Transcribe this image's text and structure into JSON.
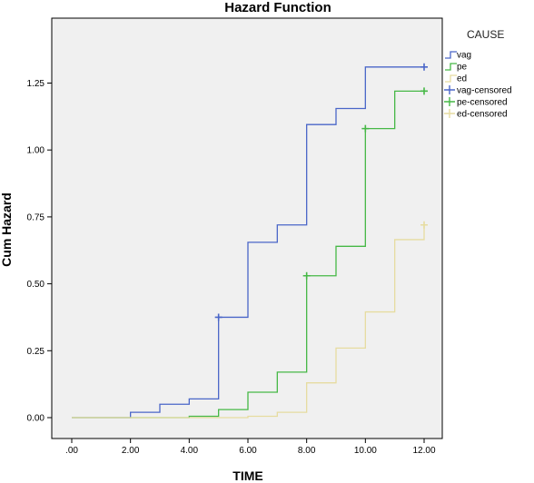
{
  "chart_data": {
    "type": "line",
    "step": true,
    "title": "Hazard Function",
    "xlabel": "TIME",
    "ylabel": "Cum Hazard",
    "xlim": [
      0,
      12
    ],
    "ylim": [
      0,
      1.4
    ],
    "x_ticks": [
      0,
      2,
      4,
      6,
      8,
      10,
      12
    ],
    "x_tick_labels": [
      ".00",
      "2.00",
      "4.00",
      "6.00",
      "8.00",
      "10.00",
      "12.00"
    ],
    "y_ticks": [
      0,
      0.25,
      0.5,
      0.75,
      1.0,
      1.25
    ],
    "y_tick_labels": [
      "0.00",
      "0.25",
      "0.50",
      "0.75",
      "1.00",
      "1.25"
    ],
    "grid": false,
    "legend_title": "CAUSE",
    "legend_placement": "right",
    "series": [
      {
        "name": "vag",
        "color": "#4a66c8",
        "x": [
          0,
          2,
          3,
          4,
          5,
          6,
          7,
          8,
          9,
          10,
          12
        ],
        "y": [
          0,
          0.02,
          0.05,
          0.07,
          0.375,
          0.655,
          0.72,
          1.095,
          1.155,
          1.31,
          1.31
        ]
      },
      {
        "name": "pe",
        "color": "#46b846",
        "x": [
          0,
          4,
          5,
          6,
          7,
          8,
          9,
          10,
          11,
          12
        ],
        "y": [
          0,
          0.005,
          0.03,
          0.095,
          0.17,
          0.53,
          0.64,
          1.08,
          1.22,
          1.22
        ]
      },
      {
        "name": "ed",
        "color": "#e6dca0",
        "x": [
          0,
          6,
          7,
          8,
          9,
          10,
          11,
          12
        ],
        "y": [
          0,
          0.005,
          0.02,
          0.13,
          0.26,
          0.395,
          0.665,
          0.72
        ]
      }
    ],
    "censored": [
      {
        "name": "vag-censored",
        "color": "#4a66c8",
        "x": [
          5,
          12
        ],
        "y": [
          0.375,
          1.31
        ]
      },
      {
        "name": "pe-censored",
        "color": "#46b846",
        "x": [
          8,
          10,
          12
        ],
        "y": [
          0.53,
          1.08,
          1.22
        ]
      },
      {
        "name": "ed-censored",
        "color": "#e6dca0",
        "x": [
          12
        ],
        "y": [
          0.72
        ]
      }
    ]
  },
  "colors": {
    "plot_background": "#f0f0f0",
    "axis": "#000000"
  }
}
